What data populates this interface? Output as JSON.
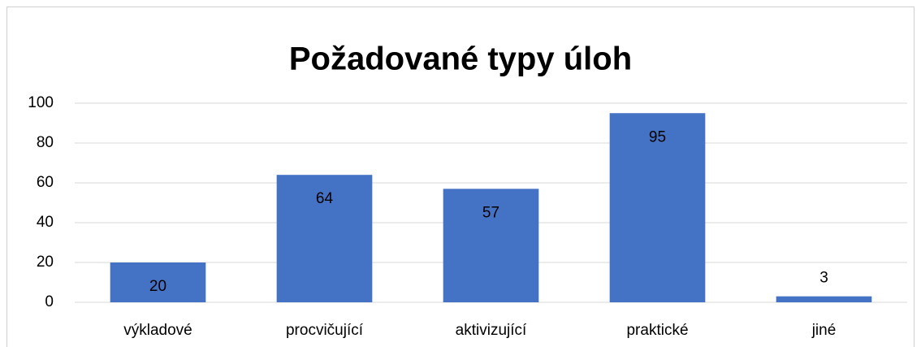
{
  "chart_data": {
    "type": "bar",
    "title": "Požadované typy úloh",
    "categories": [
      "výkladové",
      "procvičující",
      "aktivizující",
      "praktické",
      "jiné"
    ],
    "values": [
      20,
      64,
      57,
      95,
      3
    ],
    "color": "#4472c4",
    "ylim": [
      0,
      100
    ],
    "yticks": [
      0,
      20,
      40,
      60,
      80,
      100
    ],
    "grid": true
  }
}
